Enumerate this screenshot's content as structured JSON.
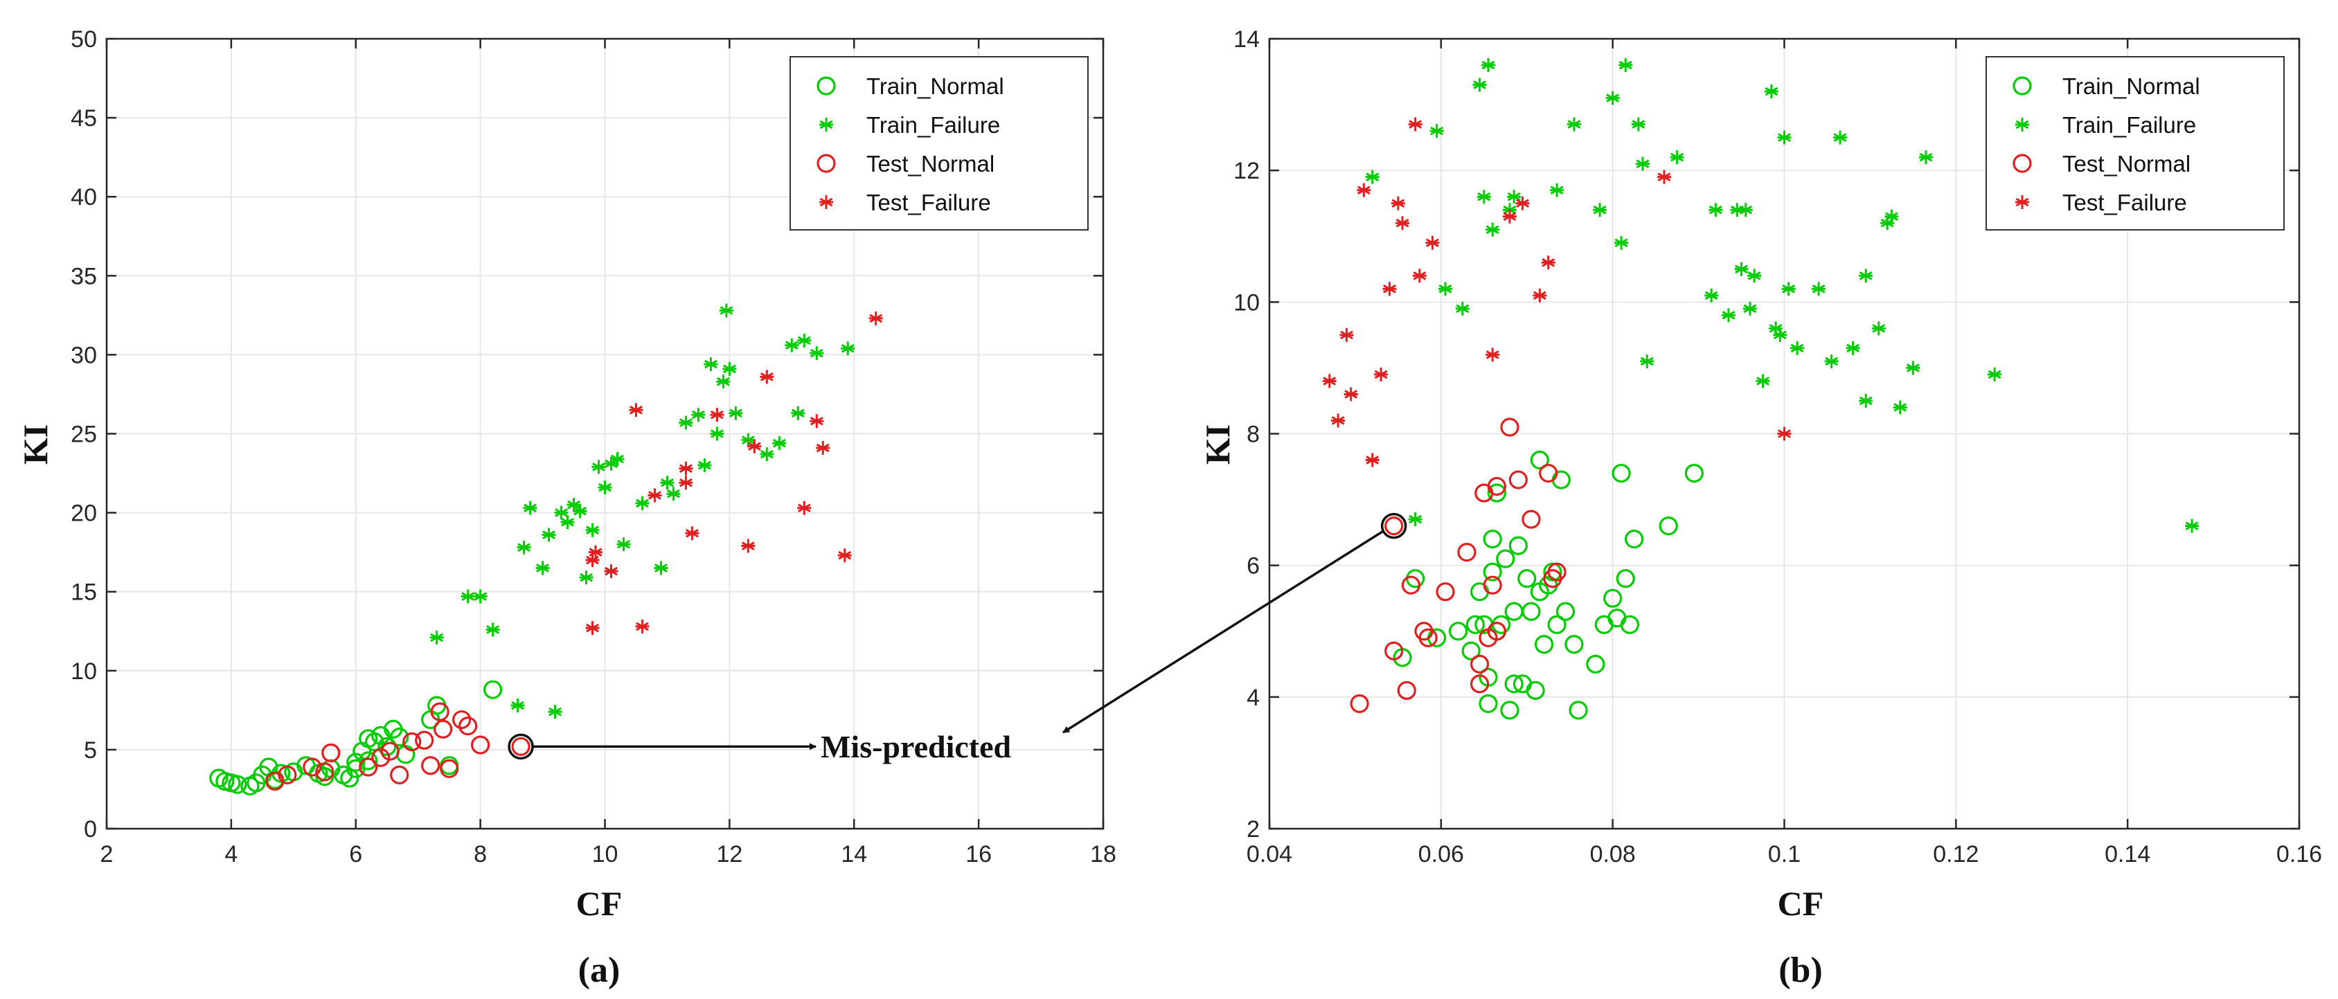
{
  "annotation": {
    "text": "Mis-predicted",
    "point_a": {
      "x": 8.65,
      "y": 5.2
    },
    "point_b": {
      "x": 0.0545,
      "y": 6.6
    }
  },
  "colors": {
    "train": "#00cc00",
    "test": "#e02020",
    "grid": "#e6e6e6",
    "axis": "#262626"
  },
  "chart_data": [
    {
      "type": "scatter",
      "panel_label": "(a)",
      "xlabel": "CF",
      "ylabel": "KI",
      "xlim": [
        2,
        18
      ],
      "ylim": [
        0,
        50
      ],
      "xticks": [
        2,
        4,
        6,
        8,
        10,
        12,
        14,
        16,
        18
      ],
      "yticks": [
        0,
        5,
        10,
        15,
        20,
        25,
        30,
        35,
        40,
        45,
        50
      ],
      "grid": true,
      "legend_position": "top-right",
      "series": [
        {
          "name": "Train_Normal",
          "marker": "circle",
          "color": "#00cc00",
          "points": [
            [
              3.8,
              3.2
            ],
            [
              3.9,
              3.0
            ],
            [
              4.0,
              2.9
            ],
            [
              4.1,
              2.8
            ],
            [
              4.4,
              2.9
            ],
            [
              4.5,
              3.4
            ],
            [
              4.6,
              3.9
            ],
            [
              4.7,
              3.1
            ],
            [
              4.8,
              3.5
            ],
            [
              5.0,
              3.6
            ],
            [
              5.2,
              4.0
            ],
            [
              5.4,
              3.5
            ],
            [
              5.6,
              3.8
            ],
            [
              5.8,
              3.4
            ],
            [
              5.9,
              3.2
            ],
            [
              6.0,
              3.8
            ],
            [
              6.0,
              4.2
            ],
            [
              6.1,
              4.9
            ],
            [
              6.2,
              4.3
            ],
            [
              6.3,
              5.5
            ],
            [
              6.4,
              5.9
            ],
            [
              6.5,
              5.2
            ],
            [
              6.6,
              6.3
            ],
            [
              6.7,
              5.8
            ],
            [
              6.8,
              4.7
            ],
            [
              7.2,
              6.9
            ],
            [
              7.3,
              7.8
            ],
            [
              7.5,
              4.0
            ],
            [
              8.2,
              8.8
            ],
            [
              4.3,
              2.7
            ],
            [
              5.5,
              3.3
            ],
            [
              6.2,
              5.7
            ]
          ]
        },
        {
          "name": "Train_Failure",
          "marker": "asterisk",
          "color": "#00cc00",
          "points": [
            [
              7.3,
              12.1
            ],
            [
              7.8,
              14.7
            ],
            [
              8.0,
              14.7
            ],
            [
              8.2,
              12.6
            ],
            [
              8.6,
              7.8
            ],
            [
              8.7,
              17.8
            ],
            [
              8.8,
              20.3
            ],
            [
              9.0,
              16.5
            ],
            [
              9.1,
              18.6
            ],
            [
              9.2,
              7.4
            ],
            [
              9.3,
              20.0
            ],
            [
              9.4,
              19.4
            ],
            [
              9.5,
              20.5
            ],
            [
              9.6,
              20.1
            ],
            [
              9.8,
              18.9
            ],
            [
              9.9,
              22.9
            ],
            [
              10.0,
              21.6
            ],
            [
              10.1,
              23.1
            ],
            [
              10.2,
              23.4
            ],
            [
              10.3,
              18.0
            ],
            [
              10.6,
              20.6
            ],
            [
              10.9,
              16.5
            ],
            [
              11.0,
              21.9
            ],
            [
              11.1,
              21.2
            ],
            [
              11.3,
              25.7
            ],
            [
              11.5,
              26.2
            ],
            [
              11.6,
              23.0
            ],
            [
              11.7,
              29.4
            ],
            [
              11.8,
              25.0
            ],
            [
              11.9,
              28.3
            ],
            [
              11.95,
              32.8
            ],
            [
              12.0,
              29.1
            ],
            [
              12.1,
              26.3
            ],
            [
              12.3,
              24.6
            ],
            [
              12.6,
              23.7
            ],
            [
              12.8,
              24.4
            ],
            [
              13.0,
              30.6
            ],
            [
              13.1,
              26.3
            ],
            [
              13.2,
              30.9
            ],
            [
              13.4,
              30.1
            ],
            [
              13.9,
              30.4
            ],
            [
              9.7,
              15.9
            ]
          ]
        },
        {
          "name": "Test_Normal",
          "marker": "circle",
          "color": "#e02020",
          "points": [
            [
              4.7,
              3.0
            ],
            [
              4.9,
              3.4
            ],
            [
              5.3,
              3.9
            ],
            [
              5.5,
              3.6
            ],
            [
              5.6,
              4.8
            ],
            [
              6.2,
              3.9
            ],
            [
              6.4,
              4.5
            ],
            [
              6.7,
              3.4
            ],
            [
              6.9,
              5.5
            ],
            [
              7.1,
              5.6
            ],
            [
              7.2,
              4.0
            ],
            [
              7.4,
              6.3
            ],
            [
              7.5,
              3.8
            ],
            [
              7.7,
              6.9
            ],
            [
              7.8,
              6.5
            ],
            [
              8.0,
              5.3
            ],
            [
              8.65,
              5.2
            ],
            [
              7.35,
              7.4
            ],
            [
              6.55,
              4.9
            ]
          ]
        },
        {
          "name": "Test_Failure",
          "marker": "asterisk",
          "color": "#e02020",
          "points": [
            [
              9.8,
              12.7
            ],
            [
              9.8,
              17.0
            ],
            [
              9.85,
              17.5
            ],
            [
              10.1,
              16.3
            ],
            [
              10.5,
              26.5
            ],
            [
              10.6,
              12.8
            ],
            [
              10.8,
              21.1
            ],
            [
              11.3,
              22.8
            ],
            [
              11.4,
              18.7
            ],
            [
              11.8,
              26.2
            ],
            [
              12.3,
              17.9
            ],
            [
              12.4,
              24.2
            ],
            [
              12.6,
              28.6
            ],
            [
              13.2,
              20.3
            ],
            [
              13.4,
              25.8
            ],
            [
              13.5,
              24.1
            ],
            [
              13.85,
              17.3
            ],
            [
              14.35,
              32.3
            ],
            [
              11.3,
              21.9
            ]
          ]
        }
      ]
    },
    {
      "type": "scatter",
      "panel_label": "(b)",
      "xlabel": "CF",
      "ylabel": "KI",
      "xlim": [
        0.04,
        0.16
      ],
      "ylim": [
        2,
        14
      ],
      "xticks": [
        0.04,
        0.06,
        0.08,
        0.1,
        0.12,
        0.14,
        0.16
      ],
      "xtick_labels": [
        "0.04",
        "0.06",
        "0.08",
        "0.1",
        "0.12",
        "0.14",
        "0.16"
      ],
      "yticks": [
        2,
        4,
        6,
        8,
        10,
        12,
        14
      ],
      "grid": true,
      "legend_position": "top-right",
      "series": [
        {
          "name": "Train_Normal",
          "marker": "circle",
          "color": "#00cc00",
          "points": [
            [
              0.0555,
              4.6
            ],
            [
              0.057,
              5.8
            ],
            [
              0.0595,
              4.9
            ],
            [
              0.062,
              5.0
            ],
            [
              0.0635,
              4.7
            ],
            [
              0.064,
              5.1
            ],
            [
              0.0645,
              5.6
            ],
            [
              0.065,
              5.1
            ],
            [
              0.0655,
              4.3
            ],
            [
              0.0655,
              3.9
            ],
            [
              0.066,
              5.9
            ],
            [
              0.066,
              6.4
            ],
            [
              0.0665,
              5.0
            ],
            [
              0.067,
              5.1
            ],
            [
              0.0675,
              6.1
            ],
            [
              0.068,
              3.8
            ],
            [
              0.0685,
              5.3
            ],
            [
              0.069,
              6.3
            ],
            [
              0.0695,
              4.2
            ],
            [
              0.07,
              5.8
            ],
            [
              0.0705,
              5.3
            ],
            [
              0.071,
              4.1
            ],
            [
              0.0715,
              5.6
            ],
            [
              0.072,
              4.8
            ],
            [
              0.0725,
              5.7
            ],
            [
              0.073,
              5.9
            ],
            [
              0.0735,
              5.1
            ],
            [
              0.074,
              7.3
            ],
            [
              0.0745,
              5.3
            ],
            [
              0.0755,
              4.8
            ],
            [
              0.076,
              3.8
            ],
            [
              0.078,
              4.5
            ],
            [
              0.079,
              5.1
            ],
            [
              0.08,
              5.5
            ],
            [
              0.0805,
              5.2
            ],
            [
              0.081,
              7.4
            ],
            [
              0.0815,
              5.8
            ],
            [
              0.082,
              5.1
            ],
            [
              0.0825,
              6.4
            ],
            [
              0.0865,
              6.6
            ],
            [
              0.0895,
              7.4
            ],
            [
              0.0715,
              7.6
            ],
            [
              0.0685,
              4.2
            ],
            [
              0.0665,
              7.1
            ]
          ]
        },
        {
          "name": "Train_Failure",
          "marker": "asterisk",
          "color": "#00cc00",
          "points": [
            [
              0.052,
              11.9
            ],
            [
              0.057,
              6.7
            ],
            [
              0.0595,
              12.6
            ],
            [
              0.0605,
              10.2
            ],
            [
              0.0625,
              9.9
            ],
            [
              0.0645,
              13.3
            ],
            [
              0.065,
              11.6
            ],
            [
              0.0655,
              13.6
            ],
            [
              0.066,
              11.1
            ],
            [
              0.068,
              11.4
            ],
            [
              0.0685,
              11.6
            ],
            [
              0.0735,
              11.7
            ],
            [
              0.0755,
              12.7
            ],
            [
              0.0785,
              11.4
            ],
            [
              0.08,
              13.1
            ],
            [
              0.081,
              10.9
            ],
            [
              0.0815,
              13.6
            ],
            [
              0.083,
              12.7
            ],
            [
              0.0835,
              12.1
            ],
            [
              0.084,
              9.1
            ],
            [
              0.0875,
              12.2
            ],
            [
              0.0915,
              10.1
            ],
            [
              0.092,
              11.4
            ],
            [
              0.0935,
              9.8
            ],
            [
              0.0945,
              11.4
            ],
            [
              0.095,
              10.5
            ],
            [
              0.0955,
              11.4
            ],
            [
              0.096,
              9.9
            ],
            [
              0.0965,
              10.4
            ],
            [
              0.0975,
              8.8
            ],
            [
              0.0985,
              13.2
            ],
            [
              0.099,
              9.6
            ],
            [
              0.1,
              12.5
            ],
            [
              0.1005,
              10.2
            ],
            [
              0.1015,
              9.3
            ],
            [
              0.104,
              10.2
            ],
            [
              0.1055,
              9.1
            ],
            [
              0.1065,
              12.5
            ],
            [
              0.108,
              9.3
            ],
            [
              0.1095,
              10.4
            ],
            [
              0.1095,
              8.5
            ],
            [
              0.111,
              9.6
            ],
            [
              0.112,
              11.2
            ],
            [
              0.1125,
              11.3
            ],
            [
              0.1135,
              8.4
            ],
            [
              0.115,
              9.0
            ],
            [
              0.1165,
              12.2
            ],
            [
              0.1245,
              8.9
            ],
            [
              0.1475,
              6.6
            ],
            [
              0.0995,
              9.5
            ]
          ]
        },
        {
          "name": "Test_Normal",
          "marker": "circle",
          "color": "#e02020",
          "points": [
            [
              0.0505,
              3.9
            ],
            [
              0.0545,
              4.7
            ],
            [
              0.0545,
              6.6
            ],
            [
              0.056,
              4.1
            ],
            [
              0.0565,
              5.7
            ],
            [
              0.058,
              5.0
            ],
            [
              0.0585,
              4.9
            ],
            [
              0.0605,
              5.6
            ],
            [
              0.063,
              6.2
            ],
            [
              0.0645,
              4.5
            ],
            [
              0.0645,
              4.2
            ],
            [
              0.065,
              7.1
            ],
            [
              0.0655,
              4.9
            ],
            [
              0.066,
              5.7
            ],
            [
              0.0665,
              7.2
            ],
            [
              0.068,
              8.1
            ],
            [
              0.069,
              7.3
            ],
            [
              0.0705,
              6.7
            ],
            [
              0.0725,
              7.4
            ],
            [
              0.073,
              5.8
            ],
            [
              0.0735,
              5.9
            ],
            [
              0.0665,
              5.0
            ]
          ]
        },
        {
          "name": "Test_Failure",
          "marker": "asterisk",
          "color": "#e02020",
          "points": [
            [
              0.047,
              8.8
            ],
            [
              0.048,
              8.2
            ],
            [
              0.049,
              9.5
            ],
            [
              0.0495,
              8.6
            ],
            [
              0.051,
              11.7
            ],
            [
              0.052,
              7.6
            ],
            [
              0.053,
              8.9
            ],
            [
              0.054,
              10.2
            ],
            [
              0.055,
              11.5
            ],
            [
              0.0555,
              11.2
            ],
            [
              0.057,
              12.7
            ],
            [
              0.0575,
              10.4
            ],
            [
              0.059,
              10.9
            ],
            [
              0.066,
              9.2
            ],
            [
              0.068,
              11.3
            ],
            [
              0.0695,
              11.5
            ],
            [
              0.0715,
              10.1
            ],
            [
              0.0725,
              10.6
            ],
            [
              0.086,
              11.9
            ],
            [
              0.1,
              8.0
            ]
          ]
        }
      ]
    }
  ]
}
